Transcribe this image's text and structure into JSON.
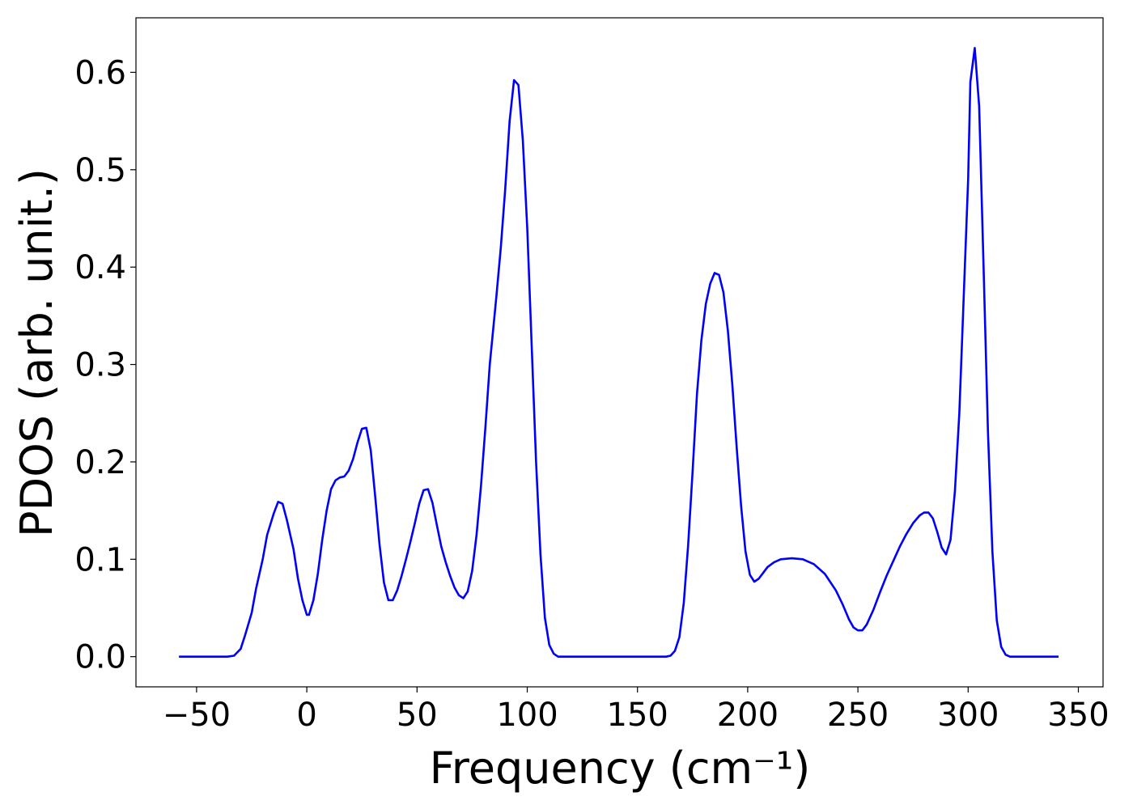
{
  "chart_data": {
    "type": "line",
    "xlabel": "Frequency (cm⁻¹)",
    "ylabel": "PDOS (arb. unit.)",
    "xlim": [
      -77.5,
      361.2
    ],
    "ylim": [
      -0.031,
      0.656
    ],
    "xticks": [
      {
        "value": -50,
        "label": "−50"
      },
      0,
      50,
      100,
      150,
      200,
      250,
      300,
      350
    ],
    "yticks": [
      {
        "value": 0,
        "label": "0.0"
      },
      0.1,
      0.2,
      0.3,
      0.4,
      0.5,
      0.6
    ],
    "series": [
      {
        "color": "#0000ff",
        "x": [
          -58,
          -36,
          -33,
          -30,
          -28,
          -25,
          -23,
          -20,
          -18,
          -15,
          -13,
          -11,
          -9,
          -6,
          -4,
          -2,
          0,
          1,
          3,
          5,
          7,
          9,
          11,
          13,
          15,
          17,
          19,
          21,
          23,
          25,
          27,
          29,
          31,
          33,
          35,
          37,
          39,
          41,
          43,
          45,
          47,
          49,
          51,
          53,
          55,
          57,
          59,
          61,
          63,
          65,
          67,
          69,
          71,
          73,
          75,
          77,
          79,
          81,
          83,
          86,
          88,
          90,
          92,
          94,
          96,
          98,
          100,
          102,
          104,
          106,
          108,
          110,
          112,
          114,
          163,
          165,
          167,
          169,
          171,
          173,
          175,
          177,
          179,
          181,
          183,
          185,
          187,
          189,
          191,
          193,
          195,
          197,
          199,
          201,
          203,
          205,
          207,
          209,
          212,
          215,
          220,
          225,
          230,
          235,
          240,
          243,
          246,
          248,
          250,
          252,
          254,
          257,
          260,
          263,
          266,
          269,
          272,
          275,
          278,
          280,
          282,
          284,
          286,
          288,
          290,
          292,
          294,
          296,
          298,
          300,
          301,
          303,
          305,
          307,
          309,
          311,
          313,
          315,
          317,
          319,
          321,
          341
        ],
        "values": [
          0,
          0,
          0.001,
          0.008,
          0.022,
          0.045,
          0.07,
          0.1,
          0.125,
          0.147,
          0.159,
          0.157,
          0.14,
          0.11,
          0.08,
          0.058,
          0.043,
          0.043,
          0.058,
          0.085,
          0.12,
          0.15,
          0.172,
          0.181,
          0.184,
          0.185,
          0.191,
          0.203,
          0.22,
          0.234,
          0.235,
          0.212,
          0.165,
          0.115,
          0.076,
          0.058,
          0.058,
          0.068,
          0.083,
          0.1,
          0.118,
          0.137,
          0.157,
          0.171,
          0.172,
          0.158,
          0.135,
          0.113,
          0.097,
          0.083,
          0.071,
          0.063,
          0.06,
          0.067,
          0.088,
          0.125,
          0.175,
          0.235,
          0.3,
          0.37,
          0.42,
          0.48,
          0.55,
          0.592,
          0.587,
          0.53,
          0.44,
          0.32,
          0.2,
          0.105,
          0.04,
          0.012,
          0.003,
          0,
          0,
          0.001,
          0.006,
          0.02,
          0.055,
          0.115,
          0.19,
          0.27,
          0.325,
          0.362,
          0.383,
          0.394,
          0.392,
          0.374,
          0.335,
          0.28,
          0.215,
          0.155,
          0.108,
          0.084,
          0.077,
          0.08,
          0.086,
          0.092,
          0.097,
          0.1,
          0.101,
          0.1,
          0.095,
          0.085,
          0.068,
          0.054,
          0.038,
          0.03,
          0.027,
          0.027,
          0.033,
          0.048,
          0.066,
          0.083,
          0.098,
          0.113,
          0.126,
          0.137,
          0.145,
          0.148,
          0.148,
          0.142,
          0.128,
          0.112,
          0.105,
          0.12,
          0.17,
          0.25,
          0.37,
          0.49,
          0.59,
          0.625,
          0.565,
          0.4,
          0.23,
          0.108,
          0.037,
          0.01,
          0.002,
          0,
          0,
          0
        ]
      }
    ]
  }
}
